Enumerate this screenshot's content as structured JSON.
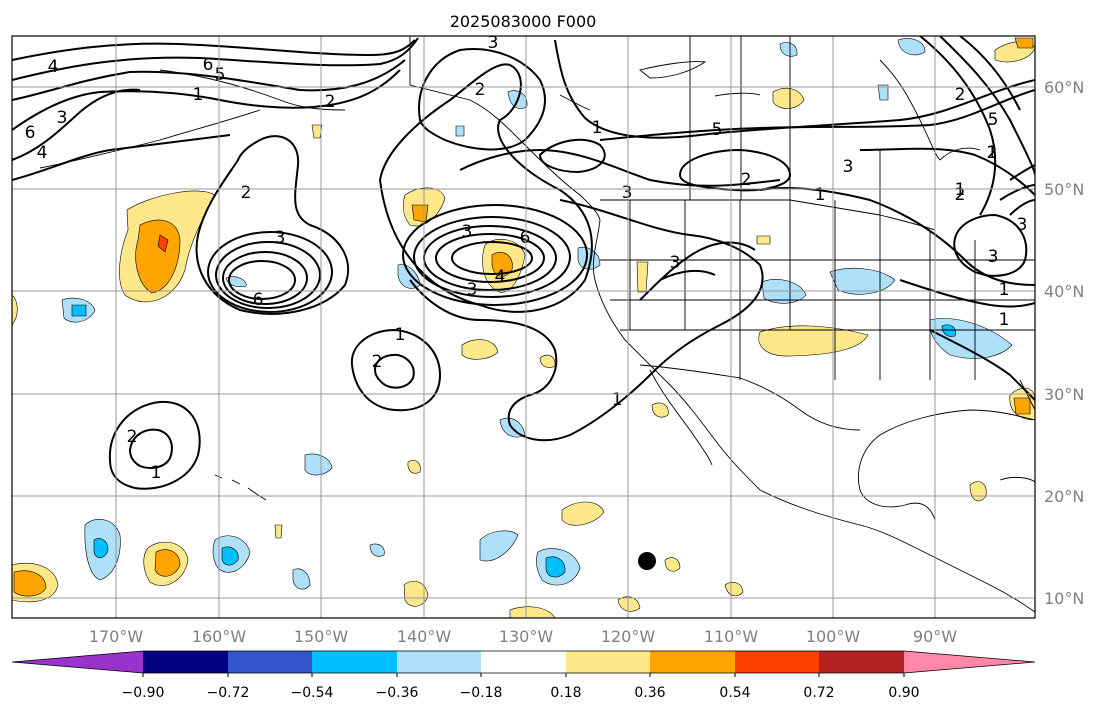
{
  "title": "2025083000 F000",
  "map": {
    "lon_labels": [
      "170°W",
      "160°W",
      "150°W",
      "140°W",
      "130°W",
      "120°W",
      "110°W",
      "100°W",
      "90°W"
    ],
    "lat_labels": [
      "60°N",
      "50°N",
      "40°N",
      "30°N",
      "20°N",
      "10°N"
    ]
  },
  "colorbar": {
    "tick_labels": [
      "−0.90",
      "−0.72",
      "−0.54",
      "−0.36",
      "−0.18",
      "0.18",
      "0.36",
      "0.54",
      "0.72",
      "0.90"
    ],
    "colors": {
      "under": "#9933cc",
      "bins": [
        "#000080",
        "#3355cc",
        "#00bfff",
        "#aee0fa",
        "#ffffff",
        "#ffe88a",
        "#ffa500",
        "#ff4000",
        "#b22222"
      ],
      "over": "#ff88aa"
    }
  },
  "contour_labels": [
    "4",
    "6",
    "5",
    "3",
    "6",
    "4",
    "1",
    "2",
    "3",
    "2",
    "3",
    "2",
    "1",
    "5",
    "3",
    "2",
    "1",
    "3",
    "6",
    "2",
    "3",
    "4",
    "6",
    "3",
    "5",
    "1",
    "2",
    "3",
    "1",
    "1",
    "2",
    "1",
    "3",
    "2",
    "1",
    "2",
    "1",
    "3",
    "1"
  ],
  "colors": {
    "contour": "#000000",
    "land_outline": "#000000",
    "marker": "#000000",
    "axis_label": "#808080"
  }
}
